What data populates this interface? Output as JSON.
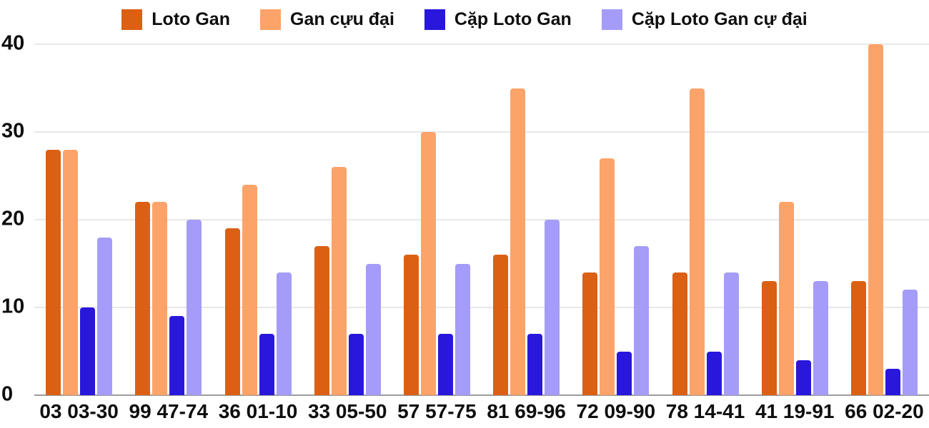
{
  "chart_data": {
    "type": "bar",
    "title": "",
    "categories": [
      "03 03-30",
      "99 47-74",
      "36 01-10",
      "33 05-50",
      "57 57-75",
      "81 69-96",
      "72 09-90",
      "78 14-41",
      "41 19-91",
      "66 02-20"
    ],
    "series": [
      {
        "name": "Loto Gan",
        "color": "#db6014",
        "values": [
          28,
          22,
          19,
          17,
          16,
          16,
          14,
          14,
          13,
          13
        ]
      },
      {
        "name": "Gan cựu đại",
        "color": "#fca369",
        "values": [
          28,
          22,
          24,
          26,
          30,
          35,
          27,
          35,
          22,
          40
        ]
      },
      {
        "name": "Cặp Loto Gan",
        "color": "#2a17dc",
        "values": [
          10,
          9,
          7,
          7,
          7,
          7,
          5,
          5,
          4,
          3
        ]
      },
      {
        "name": "Cặp Loto Gan cự đại",
        "color": "#a49cf8",
        "values": [
          18,
          20,
          14,
          15,
          15,
          20,
          17,
          14,
          13,
          12
        ]
      }
    ],
    "xlabel": "",
    "ylabel": "",
    "ylim": [
      0,
      40
    ],
    "yticks": [
      0,
      10,
      20,
      30,
      40
    ],
    "grid": true,
    "legend_position": "top"
  },
  "style": {
    "background": "#ffffff",
    "gridline_color": "#e8e8e8",
    "baseline_color": "#9b9b9b",
    "text_color": "#0e0e0e"
  }
}
